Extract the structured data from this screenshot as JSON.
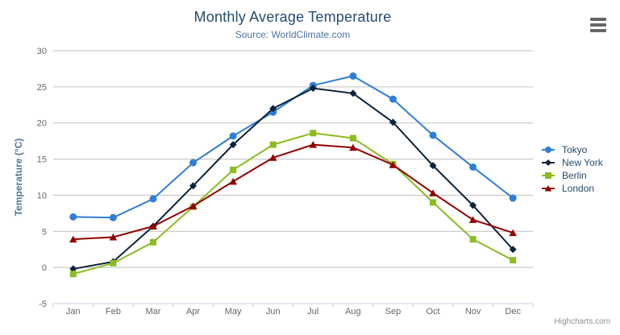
{
  "chart": {
    "title": "Monthly Average Temperature",
    "subtitle": "Source: WorldClimate.com",
    "y_axis_title": "Temperature (°C)",
    "credits": "Highcharts.com"
  },
  "icons": {
    "export_menu": "hamburger-icon"
  },
  "colors": {
    "title": "#274b6d",
    "subtitle": "#4d759e",
    "axis_title": "#4d759e",
    "axis_labels": "#666666",
    "gridline": "#c0c0c0",
    "axis_line": "#c0d0e0",
    "legend_text": "#274b6d",
    "credits_text": "#909090",
    "export_icon": "#666666"
  },
  "chart_data": {
    "type": "line",
    "title": "Monthly Average Temperature",
    "subtitle": "Source: WorldClimate.com",
    "xlabel": "",
    "ylabel": "Temperature (°C)",
    "ylim": [
      -5,
      30
    ],
    "ytick_step": 5,
    "yticks": [
      30,
      25,
      20,
      15,
      10,
      5,
      0,
      -5
    ],
    "grid": true,
    "legend_position": "right",
    "categories": [
      "Jan",
      "Feb",
      "Mar",
      "Apr",
      "May",
      "Jun",
      "Jul",
      "Aug",
      "Sep",
      "Oct",
      "Nov",
      "Dec"
    ],
    "series": [
      {
        "name": "Tokyo",
        "color": "#2f7ed8",
        "marker": "circle",
        "values": [
          7.0,
          6.9,
          9.5,
          14.5,
          18.2,
          21.5,
          25.2,
          26.5,
          23.3,
          18.3,
          13.9,
          9.6
        ]
      },
      {
        "name": "New York",
        "color": "#0d233a",
        "marker": "diamond",
        "values": [
          -0.2,
          0.8,
          5.7,
          11.3,
          17.0,
          22.0,
          24.8,
          24.1,
          20.1,
          14.1,
          8.6,
          2.5
        ]
      },
      {
        "name": "Berlin",
        "color": "#8bbc21",
        "marker": "square",
        "values": [
          -0.9,
          0.6,
          3.5,
          8.4,
          13.5,
          17.0,
          18.6,
          17.9,
          14.3,
          9.0,
          3.9,
          1.0
        ]
      },
      {
        "name": "London",
        "color": "#910000",
        "marker": "triangle",
        "values": [
          3.9,
          4.2,
          5.7,
          8.5,
          11.9,
          15.2,
          17.0,
          16.6,
          14.2,
          10.3,
          6.6,
          4.8
        ]
      }
    ]
  }
}
